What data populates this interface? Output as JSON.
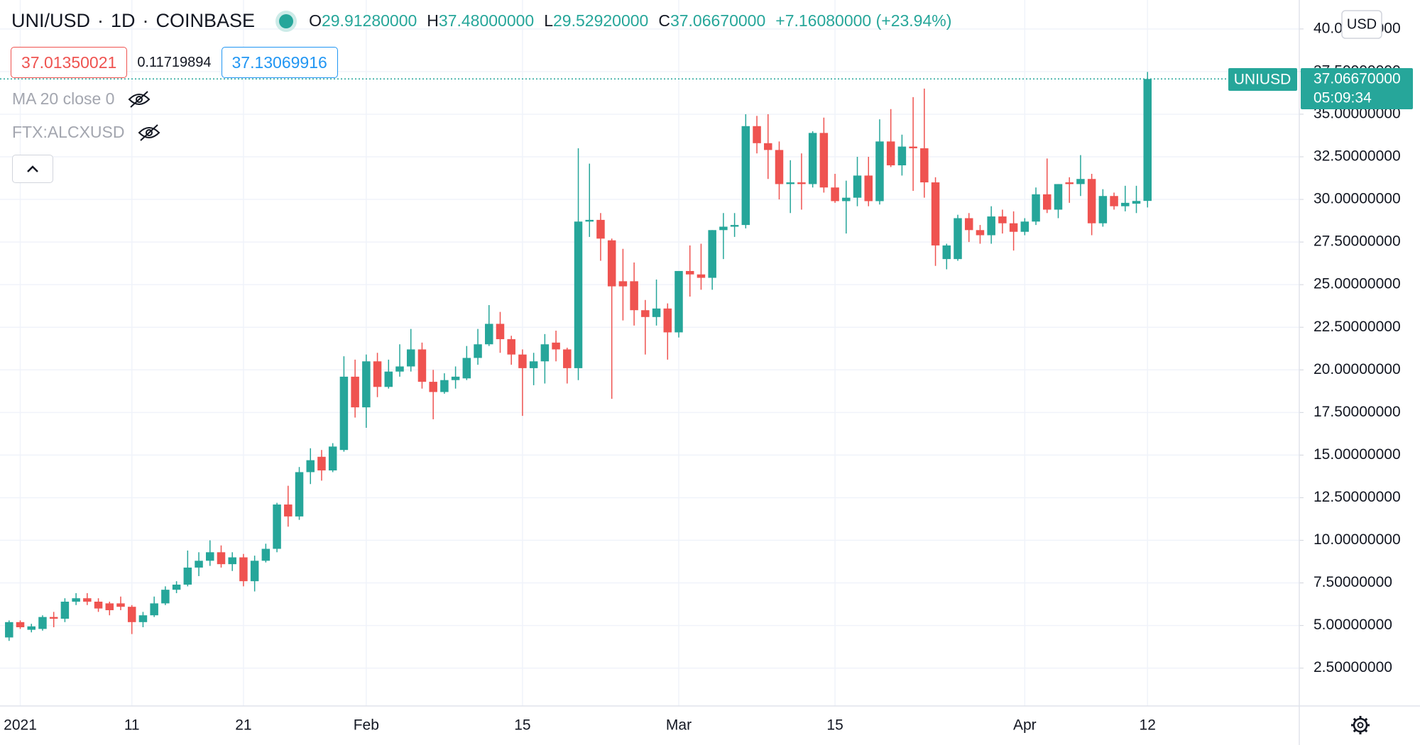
{
  "header": {
    "symbol": "UNI/USD",
    "interval": "1D",
    "exchange": "COINBASE",
    "ohlc": [
      {
        "label": "O",
        "value": "29.91280000"
      },
      {
        "label": "H",
        "value": "37.48000000"
      },
      {
        "label": "L",
        "value": "29.52920000"
      },
      {
        "label": "C",
        "value": "37.06670000"
      }
    ],
    "change": "+7.16080000 (+23.94%)"
  },
  "toolbar": {
    "sell": "37.01350021",
    "spread": "0.11719894",
    "buy": "37.13069916"
  },
  "indicators": [
    "MA 20 close 0",
    "FTX:ALCXUSD"
  ],
  "price_axis": {
    "currency": "USD",
    "symbol_label": "UNIUSD",
    "last_price": "37.06670000",
    "countdown": "05:09:34"
  },
  "chart_data": {
    "type": "candlestick",
    "categories": [
      null,
      "2021",
      null,
      null,
      null,
      null,
      null,
      null,
      null,
      null,
      null,
      "11",
      null,
      null,
      null,
      null,
      null,
      null,
      null,
      null,
      null,
      "21",
      null,
      null,
      null,
      null,
      null,
      null,
      null,
      null,
      null,
      null,
      "Feb",
      null,
      null,
      null,
      null,
      null,
      null,
      null,
      null,
      null,
      null,
      null,
      null,
      null,
      "15",
      null,
      null,
      null,
      null,
      null,
      null,
      null,
      null,
      null,
      null,
      null,
      null,
      null,
      "Mar",
      null,
      null,
      null,
      null,
      null,
      null,
      null,
      null,
      null,
      null,
      null,
      null,
      null,
      "15",
      null,
      null,
      null,
      null,
      null,
      null,
      null,
      null,
      null,
      null,
      null,
      null,
      null,
      null,
      null,
      null,
      "Apr",
      null,
      null,
      null,
      null,
      null,
      null,
      null,
      null,
      null,
      null,
      "12"
    ],
    "open": [
      4.3,
      5.2,
      4.75,
      4.8,
      5.5,
      5.4,
      6.4,
      6.6,
      6.4,
      6.3,
      6.3,
      6.1,
      5.2,
      5.6,
      6.3,
      7.1,
      7.4,
      8.4,
      8.8,
      9.3,
      8.6,
      9.0,
      7.6,
      8.8,
      9.5,
      12.1,
      11.4,
      14.0,
      14.9,
      14.1,
      15.3,
      19.6,
      17.8,
      20.5,
      19.0,
      19.9,
      20.2,
      21.2,
      19.3,
      18.7,
      19.4,
      19.5,
      20.7,
      21.5,
      22.7,
      21.8,
      20.9,
      20.1,
      20.5,
      21.6,
      21.2,
      20.1,
      28.7,
      28.8,
      27.6,
      25.2,
      25.2,
      23.5,
      23.1,
      23.6,
      22.2,
      25.8,
      25.6,
      25.4,
      28.2,
      28.4,
      28.5,
      34.3,
      33.3,
      32.9,
      30.9,
      31.0,
      30.9,
      33.9,
      30.7,
      29.9,
      30.1,
      31.4,
      29.9,
      33.4,
      32.0,
      33.1,
      33.0,
      31.0,
      26.5,
      26.5,
      28.9,
      28.2,
      27.9,
      29.0,
      28.6,
      28.1,
      28.7,
      30.3,
      29.4,
      31.0,
      30.9,
      31.2,
      28.6,
      30.2,
      29.6,
      29.75,
      29.9128
    ],
    "high": [
      5.3,
      5.3,
      5.1,
      5.6,
      5.8,
      6.6,
      6.9,
      6.9,
      6.6,
      6.4,
      6.7,
      6.2,
      5.8,
      6.7,
      7.3,
      7.6,
      9.4,
      9.3,
      10.0,
      9.7,
      9.3,
      9.2,
      9.1,
      9.8,
      12.2,
      13.2,
      14.3,
      15.4,
      15.3,
      15.7,
      20.8,
      20.6,
      20.9,
      21.0,
      20.6,
      21.5,
      22.4,
      21.6,
      20.0,
      19.8,
      20.2,
      21.4,
      22.4,
      23.8,
      23.4,
      22.0,
      21.2,
      21.0,
      22.1,
      22.3,
      21.3,
      33.0,
      32.1,
      29.2,
      27.7,
      27.1,
      26.3,
      24.1,
      25.3,
      23.9,
      25.8,
      27.3,
      27.4,
      28.2,
      29.2,
      29.2,
      35.0,
      34.9,
      35.0,
      33.4,
      32.3,
      32.7,
      34.0,
      34.8,
      31.5,
      31.1,
      32.5,
      32.5,
      34.7,
      35.3,
      33.8,
      36.0,
      36.5,
      31.3,
      27.4,
      29.1,
      29.2,
      28.5,
      29.6,
      29.4,
      29.3,
      28.9,
      30.7,
      32.4,
      30.9,
      31.3,
      32.6,
      31.5,
      30.6,
      30.4,
      30.8,
      30.8,
      37.48
    ],
    "low": [
      4.1,
      4.8,
      4.6,
      4.7,
      4.9,
      5.2,
      6.2,
      6.2,
      5.8,
      5.6,
      5.9,
      4.5,
      4.9,
      5.5,
      6.2,
      6.9,
      7.3,
      7.9,
      8.5,
      8.4,
      8.2,
      7.3,
      7.0,
      8.7,
      9.3,
      10.8,
      11.2,
      13.3,
      13.5,
      14.0,
      15.2,
      17.2,
      16.6,
      18.4,
      18.9,
      19.6,
      19.9,
      18.9,
      17.1,
      18.6,
      18.9,
      19.4,
      20.3,
      21.4,
      21.0,
      20.3,
      17.3,
      19.1,
      19.2,
      20.5,
      19.2,
      19.4,
      27.8,
      26.4,
      18.3,
      22.9,
      22.6,
      20.9,
      22.6,
      20.6,
      21.9,
      24.3,
      24.7,
      24.7,
      26.5,
      27.8,
      28.3,
      32.7,
      31.2,
      30.0,
      29.2,
      29.4,
      30.7,
      30.4,
      29.8,
      28.0,
      29.6,
      29.6,
      29.7,
      31.9,
      31.4,
      30.5,
      30.1,
      26.1,
      25.9,
      26.4,
      27.5,
      27.4,
      27.4,
      28.0,
      27.0,
      27.9,
      28.5,
      29.2,
      28.9,
      29.8,
      30.2,
      27.9,
      28.4,
      29.4,
      29.3,
      29.2,
      29.5292
    ],
    "close": [
      5.2,
      4.9,
      4.95,
      5.5,
      5.4,
      6.4,
      6.6,
      6.4,
      6.0,
      5.9,
      6.1,
      5.2,
      5.6,
      6.3,
      7.1,
      7.4,
      8.4,
      8.8,
      9.3,
      8.6,
      9.0,
      7.6,
      8.8,
      9.5,
      12.1,
      11.4,
      14.0,
      14.7,
      14.1,
      15.5,
      19.6,
      17.8,
      20.5,
      19.0,
      19.9,
      20.2,
      21.2,
      19.3,
      18.7,
      19.4,
      19.6,
      20.7,
      21.5,
      22.7,
      21.8,
      20.9,
      20.1,
      20.5,
      21.5,
      21.2,
      20.1,
      28.7,
      28.8,
      27.7,
      24.9,
      24.9,
      23.5,
      23.1,
      23.6,
      22.2,
      25.8,
      25.6,
      25.4,
      28.2,
      28.4,
      28.5,
      34.3,
      33.3,
      32.9,
      30.9,
      31.0,
      30.9,
      33.9,
      30.7,
      29.9,
      30.1,
      31.4,
      29.9,
      33.4,
      32.0,
      33.1,
      33.0,
      31.0,
      27.3,
      27.3,
      28.9,
      28.2,
      27.9,
      29.0,
      28.6,
      28.1,
      28.7,
      30.3,
      29.4,
      30.9,
      30.9,
      31.2,
      28.6,
      30.2,
      29.6,
      29.8,
      29.91,
      37.0667
    ],
    "up_color": "#26a69a",
    "down_color": "#ef5350",
    "ylim": [
      0.28,
      41.7
    ],
    "yticks": [
      {
        "value": 2.5,
        "label": "2.50000000"
      },
      {
        "value": 5,
        "label": "5.00000000"
      },
      {
        "value": 7.5,
        "label": "7.50000000"
      },
      {
        "value": 10,
        "label": "10.00000000"
      },
      {
        "value": 12.5,
        "label": "12.50000000"
      },
      {
        "value": 15,
        "label": "15.00000000"
      },
      {
        "value": 17.5,
        "label": "17.50000000"
      },
      {
        "value": 20,
        "label": "20.00000000"
      },
      {
        "value": 22.5,
        "label": "22.50000000"
      },
      {
        "value": 25,
        "label": "25.00000000"
      },
      {
        "value": 27.5,
        "label": "27.50000000"
      },
      {
        "value": 30,
        "label": "30.00000000"
      },
      {
        "value": 32.5,
        "label": "32.50000000"
      },
      {
        "value": 35,
        "label": "35.00000000"
      },
      {
        "value": 37.5,
        "label": "37.50000000"
      },
      {
        "value": 40,
        "label": "40.00000000"
      }
    ],
    "grid": true
  }
}
